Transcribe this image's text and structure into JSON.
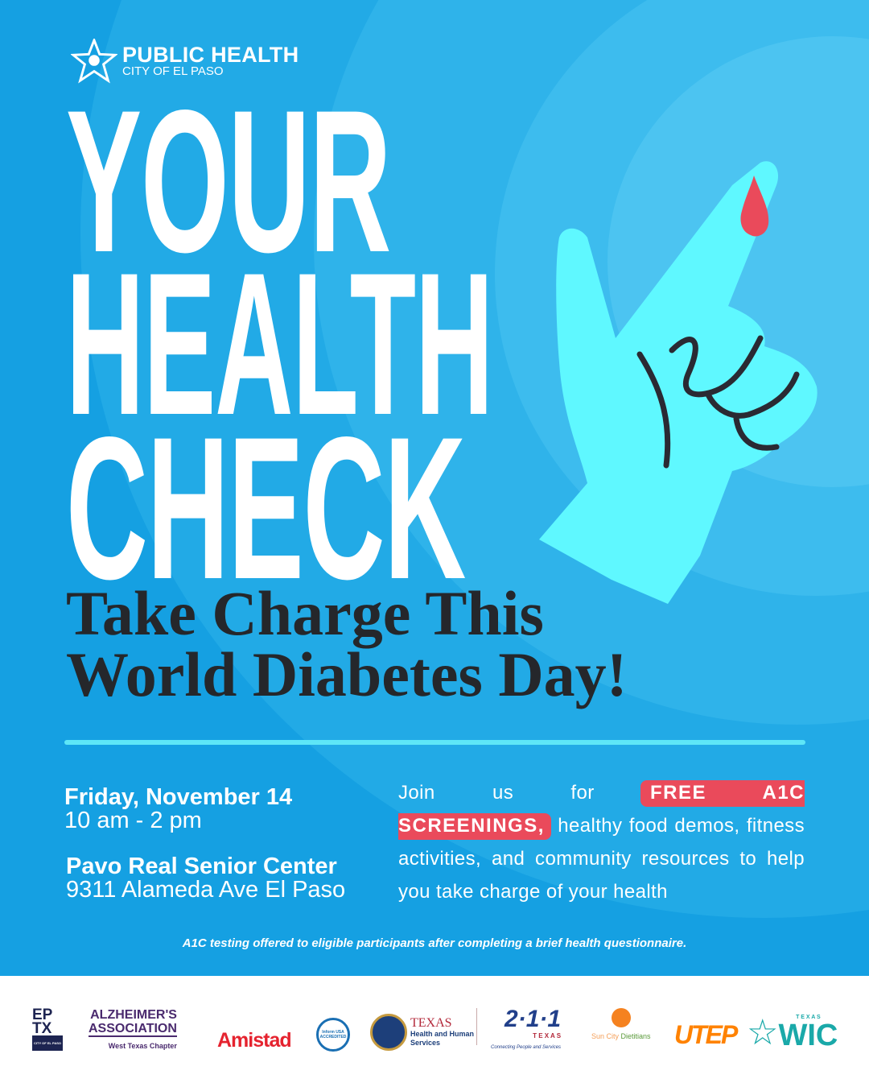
{
  "org": {
    "name": "PUBLIC HEALTH",
    "city": "CITY OF EL PASO"
  },
  "headline": [
    "YOUR",
    "HEALTH",
    "CHECK"
  ],
  "subtitle": [
    "Take Charge This",
    "World Diabetes Day!"
  ],
  "event": {
    "date": "Friday, November 14",
    "time": "10 am - 2 pm",
    "venue": "Pavo Real Senior Center",
    "address": "9311 Alameda Ave El Paso"
  },
  "description": {
    "intro": "Join us for",
    "highlight": "FREE A1C SCREENINGS,",
    "rest": "healthy food demos, fitness activities, and community resources to help you take charge of your health"
  },
  "disclaimer": "A1C testing offered to eligible participants after completing a brief health questionnaire.",
  "colors": {
    "background": "#15a0e2",
    "accent": "#5ee6f7",
    "badge": "#ea4a5b",
    "hand": "#5ff8ff",
    "drop": "#ea4a5b",
    "text_dark": "#25272b"
  },
  "partners": [
    {
      "name": "EPTX",
      "line1": "EP",
      "line2": "TX",
      "tag": "CITY OF EL PASO"
    },
    {
      "name": "Alzheimer's Association",
      "line1": "ALZHEIMER'S",
      "line2": "ASSOCIATION",
      "tag": "West Texas Chapter"
    },
    {
      "name": "Amistad",
      "line1": "Amistad"
    },
    {
      "name": "Inform USA",
      "line1": "Inform USA",
      "line2": "ACCREDITED"
    },
    {
      "name": "Texas HHS",
      "line1": "TEXAS",
      "line2": "Health and Human",
      "line3": "Services"
    },
    {
      "name": "2-1-1 Texas",
      "line1": "2·1·1",
      "line2": "T E X A S",
      "tag": "Connecting People and Services"
    },
    {
      "name": "Sun City Dietitians",
      "line1": "Sun City",
      "line2": "Dietitians"
    },
    {
      "name": "UTEP",
      "line1": "UTEP"
    },
    {
      "name": "Texas WIC",
      "line1": "WIC",
      "line2": "T E X A S"
    }
  ]
}
